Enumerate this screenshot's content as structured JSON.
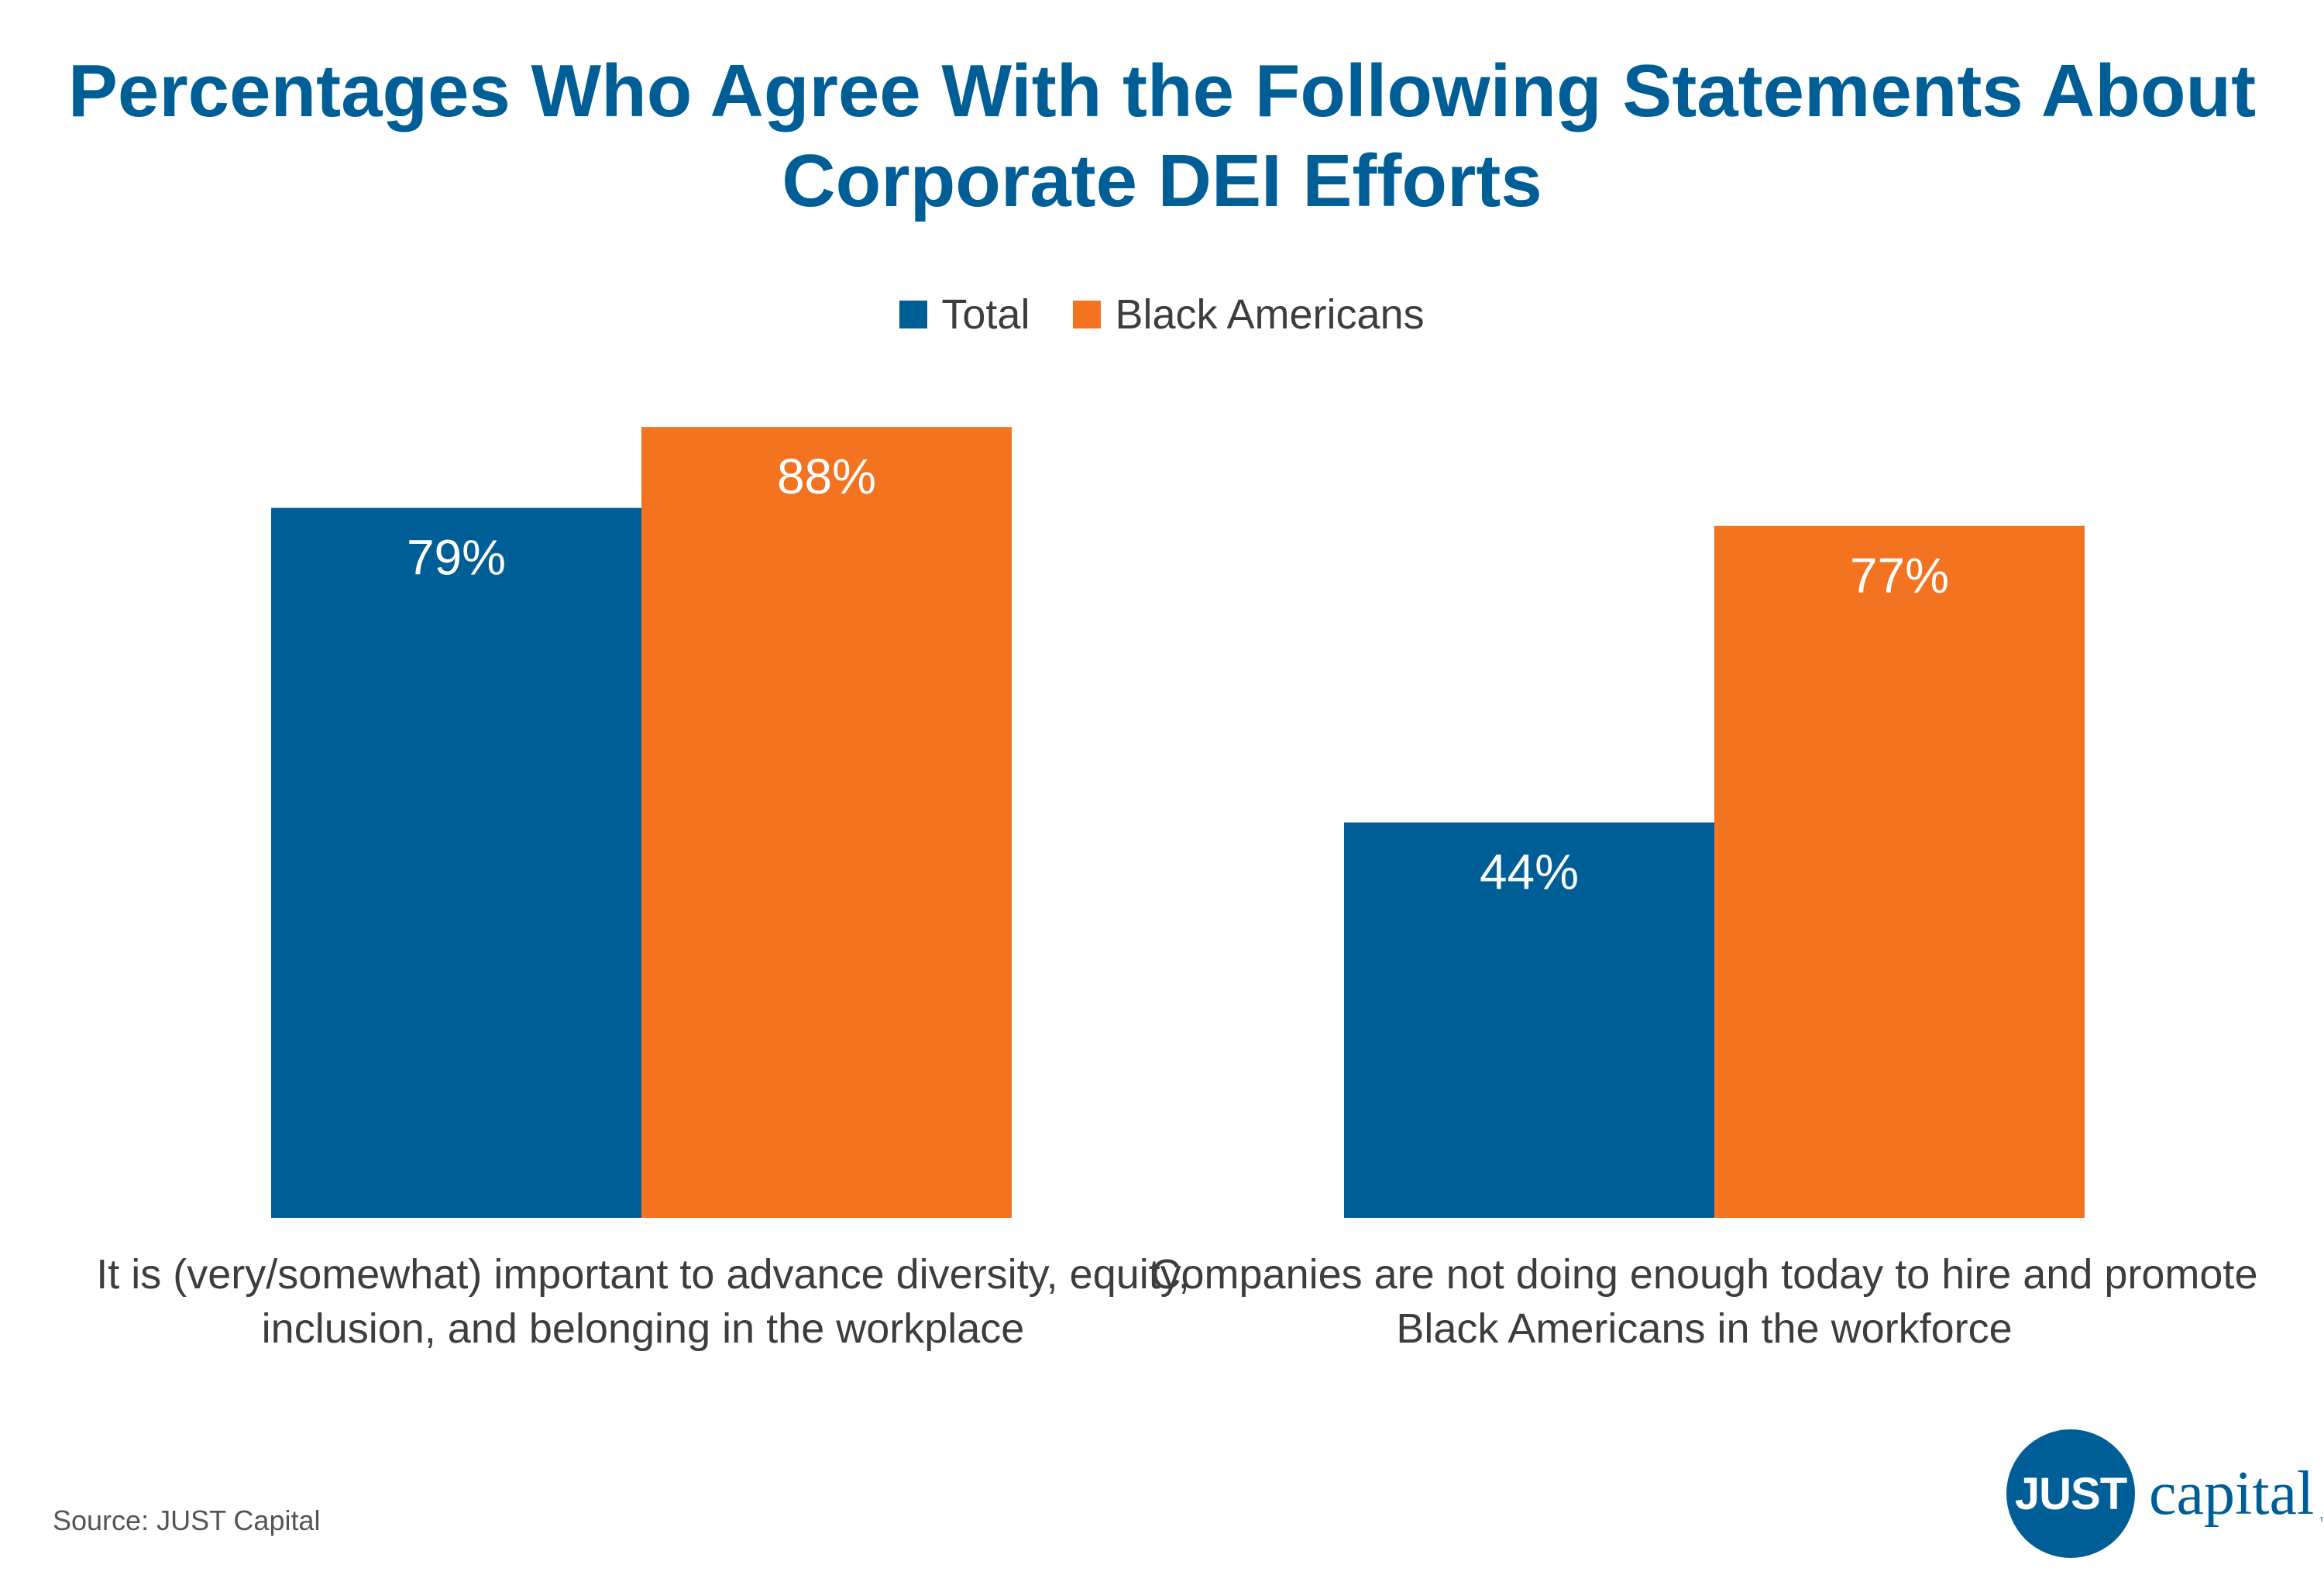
{
  "chart_data": {
    "type": "bar",
    "title": "Percentages Who Agree With the Following Statements About Corporate DEI Efforts",
    "title_lines": [
      "Percentages Who Agree With the Following Statements About",
      "Corporate DEI Efforts"
    ],
    "categories": [
      "It is (very/somewhat) important to advance diversity, equity, inclusion, and belonging in the workplace",
      "Companies are not doing enough today to hire and promote Black Americans in the workforce"
    ],
    "category_lines": [
      [
        "It is (very/somewhat) important to advance diversity, equity,",
        "inclusion, and belonging in the workplace"
      ],
      [
        "Companies are not doing enough today to hire and promote",
        "Black Americans in the workforce"
      ]
    ],
    "series": [
      {
        "name": "Total",
        "values": [
          79,
          44
        ],
        "labels": [
          "79%",
          "44%"
        ],
        "color": "#005e96"
      },
      {
        "name": "Black Americans",
        "values": [
          88,
          77
        ],
        "labels": [
          "88%",
          "77%"
        ],
        "color": "#f37321"
      }
    ],
    "ylim": [
      0,
      100
    ],
    "grid": false,
    "legend": "top-center",
    "data_labels": "inside-top"
  },
  "source": "Source: JUST Capital",
  "logo": {
    "mark": "JUST",
    "word": "capital",
    "tm": "™"
  },
  "colors": {
    "title": "#005e96",
    "text": "#3d3d3d"
  }
}
